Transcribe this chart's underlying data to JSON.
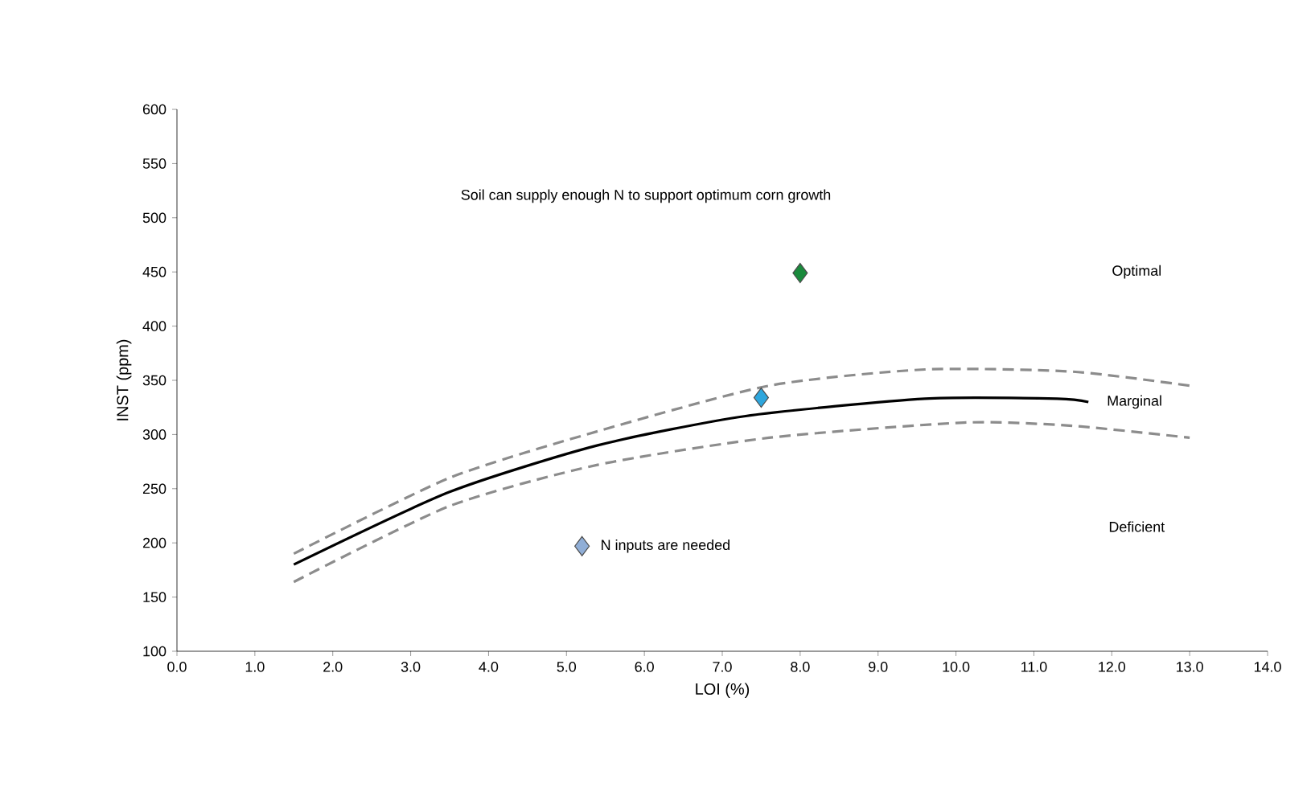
{
  "chart_data": {
    "type": "line",
    "xlabel": "LOI (%)",
    "ylabel": "INST (ppm)",
    "xlim": [
      0,
      14
    ],
    "ylim": [
      100,
      600
    ],
    "xticks": [
      {
        "value": 0,
        "label": "0.0"
      },
      {
        "value": 1,
        "label": "1.0"
      },
      {
        "value": 2,
        "label": "2.0"
      },
      {
        "value": 3,
        "label": "3.0"
      },
      {
        "value": 4,
        "label": "4.0"
      },
      {
        "value": 5,
        "label": "5.0"
      },
      {
        "value": 6,
        "label": "6.0"
      },
      {
        "value": 7,
        "label": "7.0"
      },
      {
        "value": 8,
        "label": "8.0"
      },
      {
        "value": 9,
        "label": "9.0"
      },
      {
        "value": 10,
        "label": "10.0"
      },
      {
        "value": 11,
        "label": "11.0"
      },
      {
        "value": 12,
        "label": "12.0"
      },
      {
        "value": 13,
        "label": "13.0"
      },
      {
        "value": 14,
        "label": "14.0"
      }
    ],
    "yticks": [
      100,
      150,
      200,
      250,
      300,
      350,
      400,
      450,
      500,
      550,
      600
    ],
    "grid": false,
    "marker": "none",
    "series": [
      {
        "color": "#000000",
        "line_style": "solid",
        "x": [
          1.5,
          3.5,
          5.4,
          7.3,
          9.6,
          11.3,
          11.7
        ],
        "values": [
          180,
          247,
          290,
          317,
          333,
          333,
          330
        ]
      },
      {
        "type": "line",
        "color": "#8c8c8c",
        "line_style": "dashed",
        "x": [
          1.5,
          3.5,
          5.4,
          7.6,
          9.6,
          11.5,
          13.0
        ],
        "values": [
          190,
          260,
          303,
          345,
          360,
          358,
          345
        ]
      },
      {
        "type": "line",
        "color": "#8c8c8c",
        "line_style": "dashed",
        "x": [
          1.5,
          3.5,
          5.4,
          7.6,
          10.1,
          11.5,
          13.0
        ],
        "values": [
          164,
          234,
          272,
          297,
          311,
          308,
          297
        ]
      },
      {
        "type": "scatter",
        "marker": "diamond",
        "x": [
          8.0,
          7.5,
          5.2
        ],
        "values": [
          449,
          334,
          197
        ],
        "colors": [
          "#1a8a3c",
          "#2ea6dd",
          "#90aed6"
        ]
      }
    ],
    "annotations": [
      "Soil can supply enough N to support optimum corn growth",
      "Optimal",
      {
        "text": "Marginal",
        "x": 11.7,
        "y": 330
      },
      "Deficient",
      {
        "text": "N inputs are needed",
        "x": 5.2,
        "y": 197
      }
    ]
  }
}
